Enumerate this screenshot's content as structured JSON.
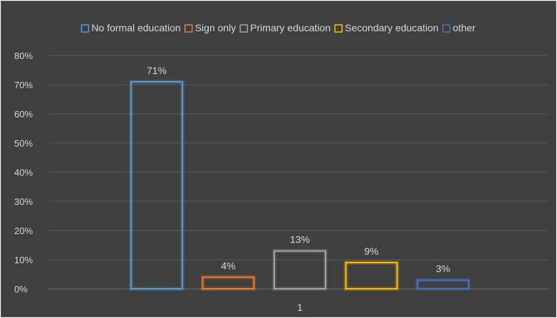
{
  "chart_data": {
    "type": "bar",
    "title": "",
    "xlabel": "",
    "ylabel": "",
    "categories": [
      "1"
    ],
    "series": [
      {
        "name": "No formal education",
        "values": [
          71
        ],
        "color": "#5b9bd5"
      },
      {
        "name": "Sign only",
        "values": [
          4
        ],
        "color": "#ed7d31"
      },
      {
        "name": "Primary education",
        "values": [
          13
        ],
        "color": "#a5a5a5"
      },
      {
        "name": "Secondary education",
        "values": [
          9
        ],
        "color": "#ffc000"
      },
      {
        "name": "other",
        "values": [
          3
        ],
        "color": "#4472c4"
      }
    ],
    "data_labels": [
      "71%",
      "4%",
      "13%",
      "9%",
      "3%"
    ],
    "ylim": [
      0,
      80
    ],
    "yticks": [
      "0%",
      "10%",
      "20%",
      "30%",
      "40%",
      "50%",
      "60%",
      "70%",
      "80%"
    ],
    "grid": true,
    "legend_position": "top"
  }
}
